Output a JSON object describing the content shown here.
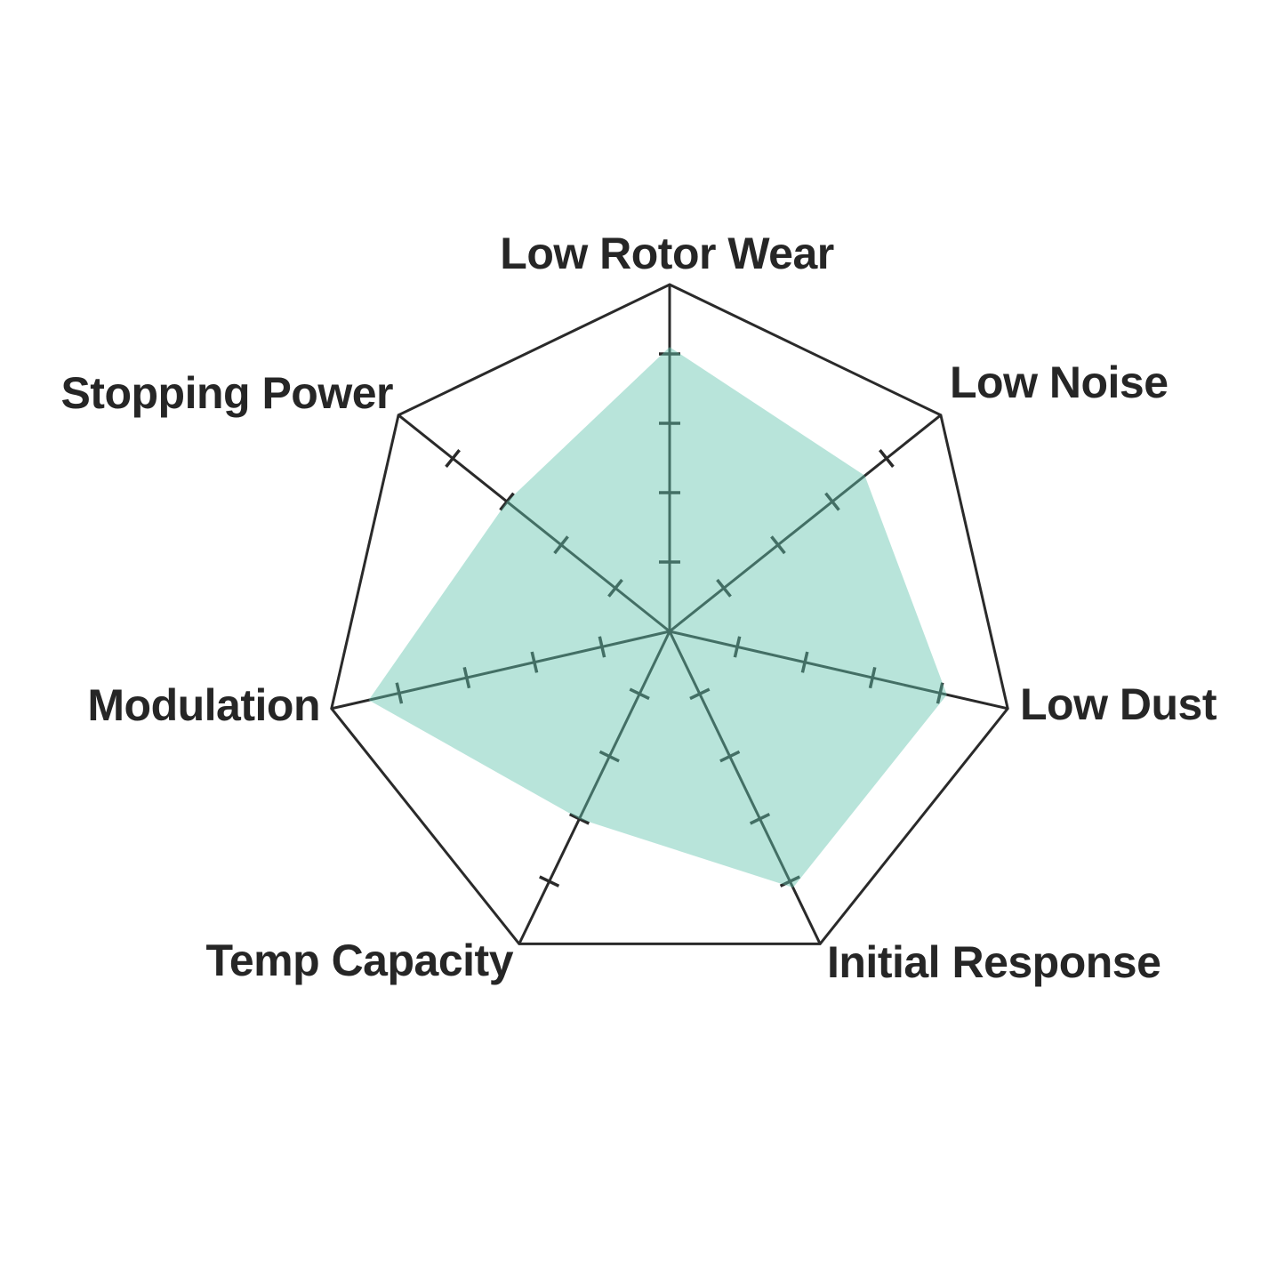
{
  "chart_data": {
    "type": "radar",
    "title": "",
    "categories": [
      "Low Rotor Wear",
      "Low Noise",
      "Low Dust",
      "Initial Response",
      "Temp Capacity",
      "Modulation",
      "Stopping Power"
    ],
    "values": [
      8.2,
      7.2,
      8.2,
      8.2,
      6.0,
      8.9,
      6.0
    ],
    "scale_min": 0,
    "scale_max": 10,
    "tick_interval": 2,
    "axis_count": 7,
    "grid": "single outer heptagon ring with radial spokes and cross ticks, no radial gridlines, no tick labels",
    "legend": "none",
    "fill_color": "#62c3ad",
    "fill_opacity": 0.45,
    "fill_color_over_white": "#b8e4da",
    "line_color": "#2a2a2a",
    "label_color": "#262626"
  }
}
